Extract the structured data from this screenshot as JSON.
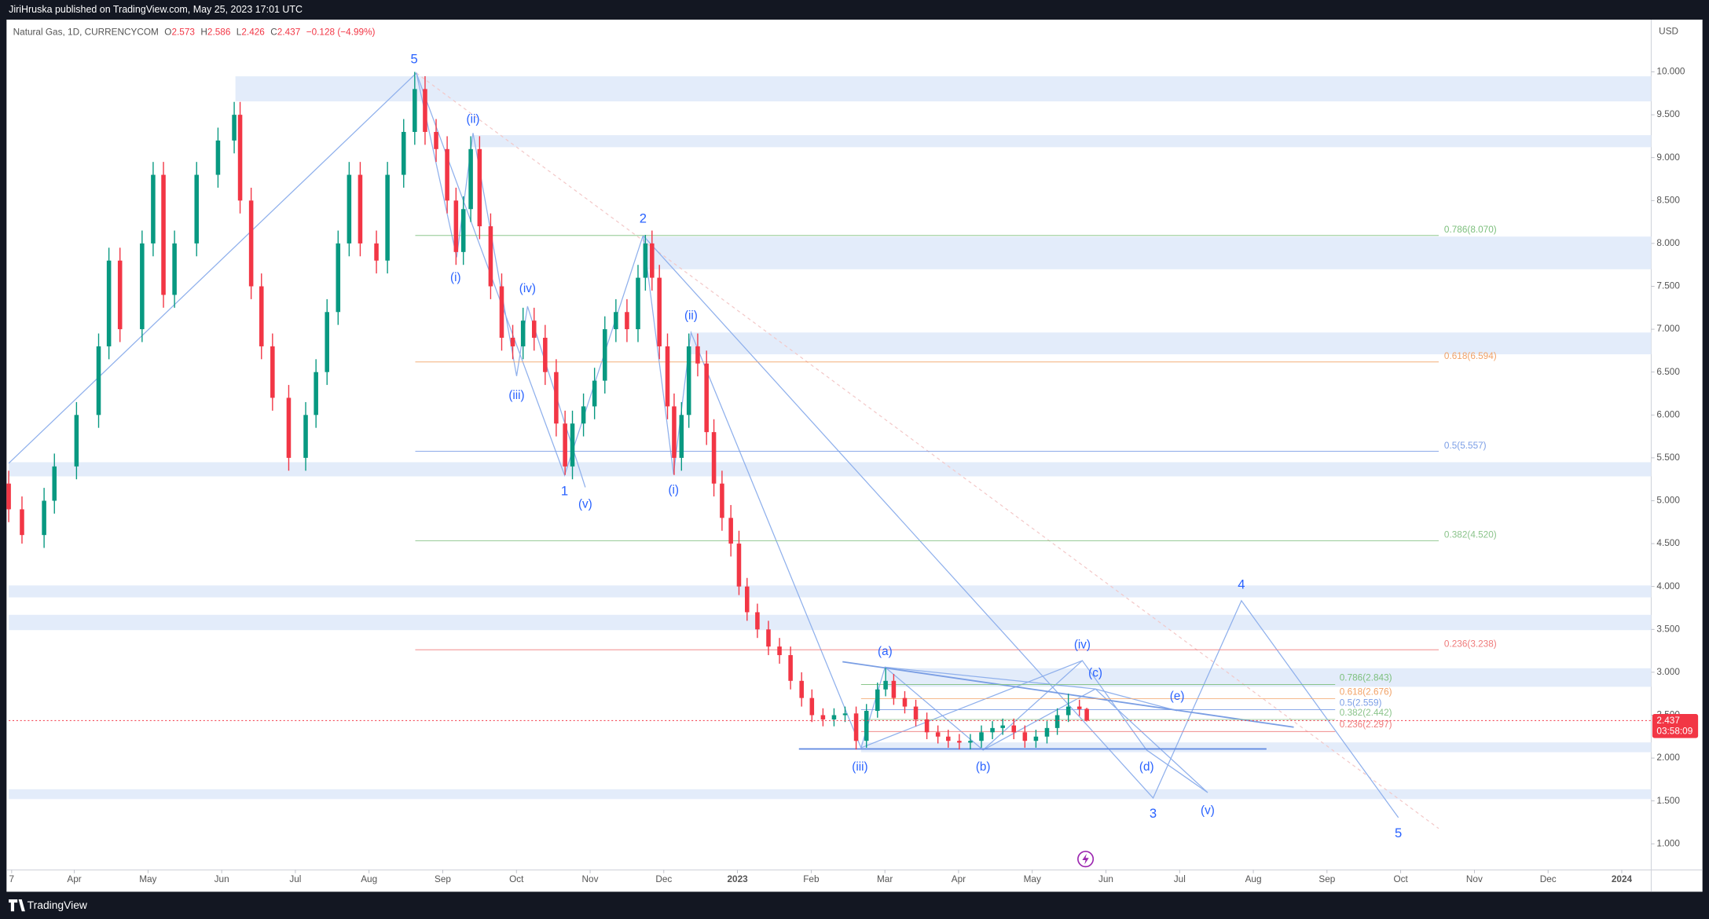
{
  "header": {
    "publisher": "JiriHruska published on TradingView.com, May 25, 2023 17:01 UTC"
  },
  "legend": {
    "symbol": "Natural Gas, 1D, CURRENCYCOM",
    "o_key": "O",
    "o": "2.573",
    "h_key": "H",
    "h": "2.586",
    "l_key": "L",
    "l": "2.426",
    "c_key": "C",
    "c": "2.437",
    "change": "−0.128 (−4.99%)"
  },
  "price_scale": {
    "currency": "USD",
    "last_price": "2.437",
    "countdown": "03:58:09"
  },
  "chart_data": {
    "type": "candlestick",
    "up_color": "#089981",
    "down_color": "#f23645",
    "x": [
      -0.89,
      -0.71,
      -0.41,
      -0.27,
      0.03,
      0.33,
      0.47,
      0.62,
      0.92,
      1.07,
      1.21,
      1.36,
      1.66,
      1.95,
      2.17,
      2.25,
      2.4,
      2.54,
      2.69,
      2.91,
      3.14,
      3.28,
      3.43,
      3.58,
      3.73,
      3.88,
      4.1,
      4.25,
      4.47,
      4.62,
      4.76,
      4.91,
      5.06,
      5.18,
      5.28,
      5.38,
      5.5,
      5.65,
      5.8,
      5.95,
      6.09,
      6.24,
      6.39,
      6.54,
      6.66,
      6.76,
      6.91,
      7.06,
      7.2,
      7.35,
      7.5,
      7.65,
      7.75,
      7.84,
      7.94,
      8.05,
      8.14,
      8.24,
      8.34,
      8.46,
      8.58,
      8.68,
      8.79,
      8.91,
      9.02,
      9.13,
      9.27,
      9.42,
      9.57,
      9.72,
      9.87,
      10.01,
      10.16,
      10.31,
      10.46,
      10.61,
      10.75,
      10.9,
      11.01,
      11.12,
      11.27,
      11.42,
      11.57,
      11.72,
      11.86,
      12.01,
      12.16,
      12.31,
      12.46,
      12.6,
      12.75,
      12.9,
      13.05,
      13.2,
      13.34,
      13.49,
      13.64,
      13.74
    ],
    "open": [
      5.2,
      4.9,
      4.6,
      5.0,
      5.4,
      6.0,
      6.8,
      7.8,
      7.0,
      8.0,
      8.8,
      7.4,
      8.0,
      8.8,
      9.2,
      9.5,
      8.5,
      7.5,
      6.8,
      6.2,
      5.5,
      6.0,
      6.5,
      7.2,
      8.0,
      8.8,
      8.0,
      7.8,
      8.8,
      9.3,
      9.8,
      9.3,
      9.1,
      8.5,
      7.9,
      8.4,
      9.1,
      8.2,
      7.5,
      6.9,
      6.8,
      7.1,
      6.9,
      6.5,
      5.9,
      5.4,
      5.9,
      6.1,
      6.4,
      7.0,
      7.2,
      7.0,
      7.6,
      8.0,
      7.6,
      6.8,
      6.1,
      5.5,
      6.0,
      6.8,
      6.6,
      5.8,
      5.2,
      4.8,
      4.5,
      4.0,
      3.7,
      3.5,
      3.3,
      3.2,
      2.9,
      2.7,
      2.5,
      2.45,
      2.5,
      2.52,
      2.2,
      2.55,
      2.8,
      2.9,
      2.7,
      2.6,
      2.45,
      2.3,
      2.25,
      2.2,
      2.18,
      2.2,
      2.3,
      2.35,
      2.38,
      2.3,
      2.2,
      2.25,
      2.35,
      2.5,
      2.6,
      2.573
    ],
    "high": [
      5.35,
      5.05,
      5.15,
      5.55,
      6.15,
      6.95,
      7.95,
      7.95,
      8.15,
      8.95,
      8.95,
      8.15,
      8.95,
      9.35,
      9.65,
      9.65,
      8.65,
      7.65,
      6.95,
      6.35,
      6.15,
      6.65,
      7.35,
      8.15,
      8.95,
      8.95,
      8.15,
      8.95,
      9.45,
      10.0,
      9.95,
      9.45,
      9.25,
      8.65,
      8.55,
      9.25,
      9.25,
      8.35,
      7.65,
      7.05,
      7.25,
      7.25,
      7.05,
      6.65,
      6.05,
      6.05,
      6.25,
      6.55,
      7.15,
      7.35,
      7.35,
      7.75,
      8.1,
      8.15,
      7.75,
      6.95,
      6.25,
      6.15,
      6.95,
      6.95,
      6.75,
      5.95,
      5.35,
      4.95,
      4.65,
      4.1,
      3.8,
      3.6,
      3.4,
      3.3,
      3.0,
      2.8,
      2.58,
      2.58,
      2.6,
      2.6,
      2.63,
      2.88,
      3.05,
      2.98,
      2.78,
      2.68,
      2.53,
      2.38,
      2.33,
      2.28,
      2.28,
      2.38,
      2.43,
      2.46,
      2.46,
      2.38,
      2.33,
      2.43,
      2.58,
      2.75,
      2.68,
      2.586
    ],
    "low": [
      4.75,
      4.5,
      4.45,
      4.85,
      5.25,
      5.85,
      6.65,
      6.85,
      6.85,
      7.85,
      7.25,
      7.25,
      7.85,
      8.65,
      9.05,
      8.35,
      7.35,
      6.65,
      6.05,
      5.35,
      5.35,
      5.85,
      6.35,
      7.05,
      7.85,
      7.85,
      7.65,
      7.65,
      8.65,
      9.15,
      9.15,
      8.95,
      8.35,
      7.75,
      7.75,
      8.25,
      8.05,
      7.35,
      6.75,
      6.65,
      6.65,
      6.75,
      6.35,
      5.75,
      5.3,
      5.25,
      5.75,
      5.95,
      6.25,
      6.85,
      6.85,
      6.85,
      7.45,
      7.45,
      6.65,
      5.95,
      5.3,
      5.35,
      5.85,
      6.45,
      5.65,
      5.05,
      4.65,
      4.35,
      3.9,
      3.6,
      3.4,
      3.2,
      3.1,
      2.8,
      2.6,
      2.42,
      2.37,
      2.37,
      2.42,
      2.1,
      2.12,
      2.47,
      2.72,
      2.62,
      2.52,
      2.37,
      2.22,
      2.17,
      2.12,
      2.1,
      2.1,
      2.12,
      2.22,
      2.27,
      2.22,
      2.12,
      2.12,
      2.17,
      2.27,
      2.42,
      2.49,
      2.426
    ],
    "close": [
      4.9,
      4.6,
      5.0,
      5.4,
      6.0,
      6.8,
      7.8,
      7.0,
      8.0,
      8.8,
      7.4,
      8.0,
      8.8,
      9.2,
      9.5,
      8.5,
      7.5,
      6.8,
      6.2,
      5.5,
      6.0,
      6.5,
      7.2,
      8.0,
      8.8,
      8.0,
      7.8,
      8.8,
      9.3,
      9.8,
      9.3,
      9.1,
      8.5,
      7.9,
      8.4,
      9.1,
      8.2,
      7.5,
      6.9,
      6.8,
      7.1,
      6.9,
      6.5,
      5.9,
      5.4,
      5.9,
      6.1,
      6.4,
      7.0,
      7.2,
      7.0,
      7.6,
      8.0,
      7.6,
      6.8,
      6.1,
      5.5,
      6.0,
      6.8,
      6.6,
      5.8,
      5.2,
      4.8,
      4.5,
      4.0,
      3.7,
      3.5,
      3.3,
      3.2,
      2.9,
      2.7,
      2.5,
      2.45,
      2.5,
      2.52,
      2.2,
      2.55,
      2.8,
      2.9,
      2.7,
      2.6,
      2.45,
      2.3,
      2.25,
      2.2,
      2.18,
      2.2,
      2.3,
      2.35,
      2.38,
      2.3,
      2.2,
      2.25,
      2.35,
      2.5,
      2.6,
      2.57,
      2.437
    ],
    "xlim": [
      -0.89,
      21.4
    ],
    "xticks": [
      {
        "value": -0.85,
        "label": "7"
      },
      {
        "value": 0,
        "label": "Apr"
      },
      {
        "value": 1,
        "label": "May"
      },
      {
        "value": 2,
        "label": "Jun"
      },
      {
        "value": 3,
        "label": "Jul"
      },
      {
        "value": 4,
        "label": "Aug"
      },
      {
        "value": 5,
        "label": "Sep"
      },
      {
        "value": 6,
        "label": "Oct"
      },
      {
        "value": 7,
        "label": "Nov"
      },
      {
        "value": 8,
        "label": "Dec"
      },
      {
        "value": 9,
        "label": "2023"
      },
      {
        "value": 10,
        "label": "Feb"
      },
      {
        "value": 11,
        "label": "Mar"
      },
      {
        "value": 12,
        "label": "Apr"
      },
      {
        "value": 13,
        "label": "May"
      },
      {
        "value": 14,
        "label": "Jun"
      },
      {
        "value": 15,
        "label": "Jul"
      },
      {
        "value": 16,
        "label": "Aug"
      },
      {
        "value": 17,
        "label": "Sep"
      },
      {
        "value": 18,
        "label": "Oct"
      },
      {
        "value": 19,
        "label": "Nov"
      },
      {
        "value": 20,
        "label": "Dec"
      },
      {
        "value": 21,
        "label": "2024"
      }
    ],
    "ylim": [
      0.708,
      10.584
    ],
    "yticks": [
      {
        "value": 1,
        "label": "1.000"
      },
      {
        "value": 1.5,
        "label": "1.500"
      },
      {
        "value": 2,
        "label": "2.000"
      },
      {
        "value": 2.5,
        "label": "2.500"
      },
      {
        "value": 3,
        "label": "3.000"
      },
      {
        "value": 3.5,
        "label": "3.500"
      },
      {
        "value": 4,
        "label": "4.000"
      },
      {
        "value": 4.5,
        "label": "4.500"
      },
      {
        "value": 5,
        "label": "5.000"
      },
      {
        "value": 5.5,
        "label": "5.500"
      },
      {
        "value": 6,
        "label": "6.000"
      },
      {
        "value": 6.5,
        "label": "6.500"
      },
      {
        "value": 7,
        "label": "7.000"
      },
      {
        "value": 7.5,
        "label": "7.500"
      },
      {
        "value": 8,
        "label": "8.000"
      },
      {
        "value": 8.5,
        "label": "8.500"
      },
      {
        "value": 9,
        "label": "9.000"
      },
      {
        "value": 9.5,
        "label": "9.500"
      },
      {
        "value": 10,
        "label": "10.000"
      }
    ],
    "grid": false
  },
  "annotations": {
    "waves": [
      "5",
      "(ii)",
      "(i)",
      "(iv)",
      "(iii)",
      "1",
      "(v)",
      "2",
      "(ii)",
      "(i)",
      "(a)",
      "(iii)",
      "(b)",
      "(iv)",
      "(c)",
      "(e)",
      "(d)",
      "3",
      "(v)",
      "4",
      "5"
    ],
    "fib_major": [
      "0.786(8.070)",
      "0.618(6.594)",
      "0.5(5.557)",
      "0.382(4.520)",
      "0.236(3.238)"
    ],
    "fib_minor": [
      "0.786(2.843)",
      "0.618(2.676)",
      "0.5(2.559)",
      "0.382(2.442)",
      "0.236(2.297)"
    ]
  },
  "footer": {
    "brand": "TradingView"
  }
}
